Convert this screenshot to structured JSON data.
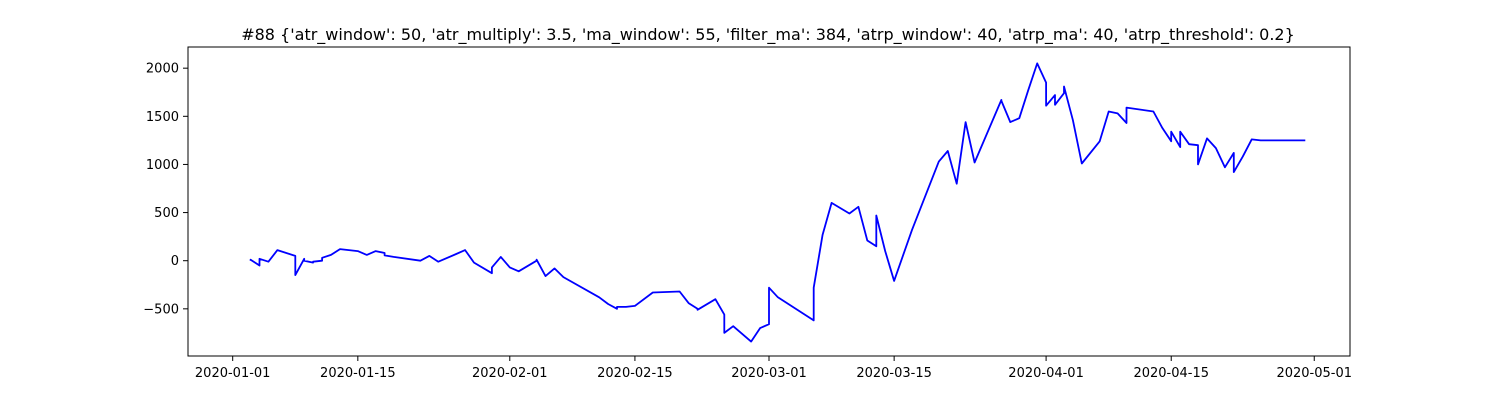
{
  "chart_data": {
    "type": "line",
    "title": "#88 {'atr_window': 50, 'atr_multiply': 3.5, 'ma_window': 55, 'filter_ma': 384, 'atrp_window': 40, 'atrp_ma': 40, 'atrp_threshold': 0.2}",
    "xlabel": "",
    "ylabel": "",
    "xlim": [
      "2019-12-27",
      "2020-05-05"
    ],
    "ylim": [
      -990,
      2220
    ],
    "grid": false,
    "x_ticks": [
      "2020-01-01",
      "2020-01-15",
      "2020-02-01",
      "2020-02-15",
      "2020-03-01",
      "2020-03-15",
      "2020-04-01",
      "2020-04-15",
      "2020-05-01"
    ],
    "y_ticks": [
      -500,
      0,
      500,
      1000,
      1500,
      2000
    ],
    "colors": {
      "line": "#0000ff",
      "axes": "#000000",
      "background": "#ffffff"
    },
    "series": [
      {
        "x": [
          "2020-01-03",
          "2020-01-03",
          "2020-01-04",
          "2020-01-04",
          "2020-01-05",
          "2020-01-06",
          "2020-01-08",
          "2020-01-08",
          "2020-01-09",
          "2020-01-09",
          "2020-01-10",
          "2020-01-10",
          "2020-01-11",
          "2020-01-11",
          "2020-01-12",
          "2020-01-13",
          "2020-01-14",
          "2020-01-15",
          "2020-01-16",
          "2020-01-17",
          "2020-01-18",
          "2020-01-18",
          "2020-01-19",
          "2020-01-22",
          "2020-01-23",
          "2020-01-24",
          "2020-01-26",
          "2020-01-27",
          "2020-01-28",
          "2020-01-30",
          "2020-01-30",
          "2020-01-31",
          "2020-02-01",
          "2020-02-02",
          "2020-02-04",
          "2020-02-04",
          "2020-02-05",
          "2020-02-06",
          "2020-02-07",
          "2020-02-11",
          "2020-02-12",
          "2020-02-13",
          "2020-02-13",
          "2020-02-14",
          "2020-02-15",
          "2020-02-17",
          "2020-02-20",
          "2020-02-20",
          "2020-02-21",
          "2020-02-22",
          "2020-02-22",
          "2020-02-24",
          "2020-02-24",
          "2020-02-25",
          "2020-02-25",
          "2020-02-26",
          "2020-02-28",
          "2020-02-29",
          "2020-03-01",
          "2020-03-01",
          "2020-03-02",
          "2020-03-06",
          "2020-03-06",
          "2020-03-07",
          "2020-03-08",
          "2020-03-10",
          "2020-03-11",
          "2020-03-12",
          "2020-03-13",
          "2020-03-13",
          "2020-03-14",
          "2020-03-15",
          "2020-03-17",
          "2020-03-20",
          "2020-03-21",
          "2020-03-22",
          "2020-03-23",
          "2020-03-24",
          "2020-03-27",
          "2020-03-27",
          "2020-03-28",
          "2020-03-29",
          "2020-03-30",
          "2020-03-31",
          "2020-04-01",
          "2020-04-01",
          "2020-04-02",
          "2020-04-02",
          "2020-04-03",
          "2020-04-03",
          "2020-04-04",
          "2020-04-05",
          "2020-04-07",
          "2020-04-08",
          "2020-04-09",
          "2020-04-10",
          "2020-04-10",
          "2020-04-13",
          "2020-04-14",
          "2020-04-15",
          "2020-04-15",
          "2020-04-16",
          "2020-04-16",
          "2020-04-17",
          "2020-04-18",
          "2020-04-18",
          "2020-04-19",
          "2020-04-20",
          "2020-04-21",
          "2020-04-22",
          "2020-04-22",
          "2020-04-22",
          "2020-04-23",
          "2020-04-24",
          "2020-04-25",
          "2020-04-27",
          "2020-04-28",
          "2020-04-29",
          "2020-04-30",
          "2020-04-30"
        ],
        "y": [
          0,
          10,
          -50,
          20,
          -10,
          110,
          50,
          -150,
          20,
          0,
          -20,
          -10,
          0,
          30,
          60,
          120,
          110,
          100,
          60,
          100,
          80,
          55,
          40,
          0,
          50,
          -10,
          70,
          110,
          -20,
          -130,
          -70,
          40,
          -70,
          -110,
          0,
          10,
          -160,
          -80,
          -170,
          -380,
          -450,
          -500,
          -480,
          -480,
          -470,
          -330,
          -320,
          -320,
          -440,
          -500,
          -510,
          -400,
          -400,
          -560,
          -750,
          -680,
          -840,
          -700,
          -660,
          -280,
          -380,
          -620,
          -280,
          270,
          600,
          490,
          560,
          210,
          150,
          470,
          100,
          -210,
          320,
          1030,
          1140,
          800,
          1440,
          1020,
          1670,
          1660,
          1440,
          1480,
          1770,
          2050,
          1850,
          1610,
          1720,
          1620,
          1740,
          1810,
          1460,
          1010,
          1240,
          1550,
          1530,
          1430,
          1590,
          1550,
          1380,
          1240,
          1340,
          1180,
          1340,
          1210,
          1200,
          1000,
          1270,
          1170,
          970,
          1120,
          1040,
          920,
          1080,
          1260,
          1250,
          1250,
          1250,
          1250,
          1250,
          1250
        ],
        "color": "#0000ff"
      }
    ]
  }
}
